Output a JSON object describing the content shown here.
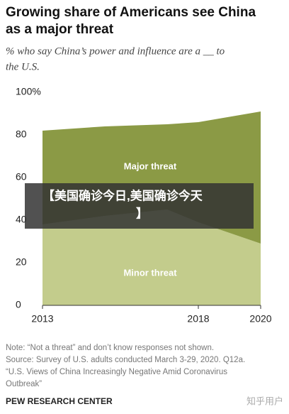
{
  "chart_data": {
    "type": "stacked-area",
    "title": [
      "Growing share of Americans see China",
      "as a major threat"
    ],
    "subtitle": [
      "% who say China’s power and influence are a __ to",
      "the U.S."
    ],
    "x": [
      2013,
      2015,
      2017,
      2018,
      2020
    ],
    "series": [
      {
        "name": "Minor threat",
        "color": "#c3cc8c",
        "values": [
          38,
          42,
          45,
          39,
          29
        ]
      },
      {
        "name": "Major threat",
        "color": "#8b9a45",
        "values": [
          44,
          42,
          40,
          47,
          62
        ]
      }
    ],
    "xlim": [
      2013,
      2020
    ],
    "xticks": [
      2013,
      2018,
      2020
    ],
    "ylim": [
      0,
      100
    ],
    "yticks": [
      0,
      20,
      40,
      60,
      80,
      {
        "value": 100,
        "label": "100%"
      }
    ],
    "notes": [
      "Note: “Not a threat” and don’t know responses not shown.",
      "Source: Survey of U.S. adults conducted March 3-29, 2020. Q12a.",
      "“U.S. Views of China Increasingly Negative Amid Coronavirus",
      "Outbreak”"
    ],
    "source_org": "PEW RESEARCH CENTER",
    "overlay_caption": [
      "【美国确诊今日,美国确诊今天",
      "】"
    ],
    "watermark": "知乎用户"
  }
}
